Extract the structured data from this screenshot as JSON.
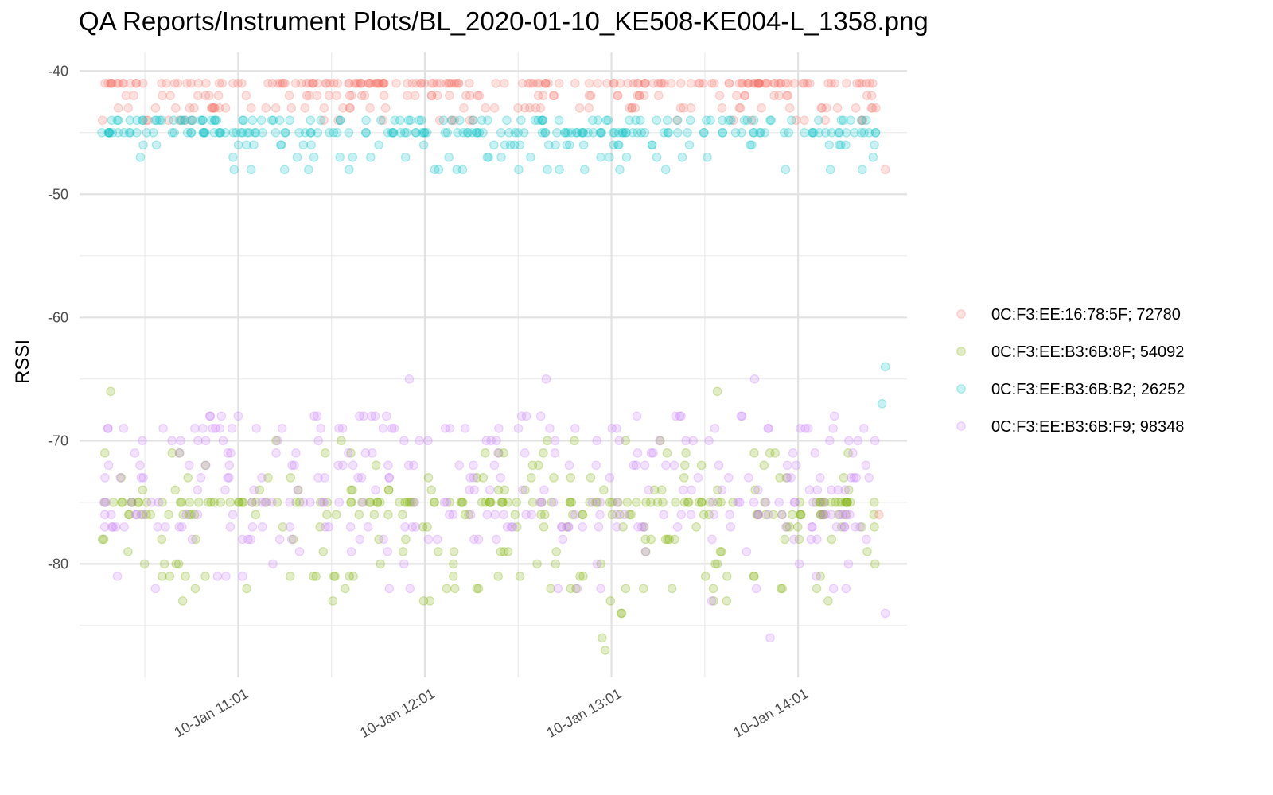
{
  "chart_data": {
    "type": "scatter",
    "title": "QA Reports/Instrument Plots/BL_2020-01-10_KE508-KE004-L_1358.png",
    "xlabel": "",
    "ylabel": "RSSI",
    "x_axis": {
      "kind": "datetime",
      "domain": [
        "2020-01-10 10:10",
        "2020-01-10 14:36"
      ],
      "major_ticks": [
        "2020-01-10 11:01",
        "2020-01-10 12:01",
        "2020-01-10 13:01",
        "2020-01-10 14:01"
      ],
      "major_tick_labels": [
        "10-Jan 11:01",
        "10-Jan 12:01",
        "10-Jan 13:01",
        "10-Jan 14:01"
      ],
      "minor_ticks": [
        "2020-01-10 10:31",
        "2020-01-10 11:31",
        "2020-01-10 12:31",
        "2020-01-10 13:31"
      ]
    },
    "ylim": [
      -89.2,
      -38.5
    ],
    "y_major_ticks": [
      -40,
      -50,
      -60,
      -70,
      -80
    ],
    "y_minor_ticks": [
      -45,
      -55,
      -65,
      -75,
      -85
    ],
    "grid": true,
    "legend_position": "right",
    "marker_opacity": 0.22,
    "time_range": [
      "2020-01-10 10:17",
      "2020-01-10 14:26"
    ],
    "series": [
      {
        "name": "0C:F3:EE:16:78:5F; 72780",
        "color": "#F8766D",
        "rssi_levels": [
          -41,
          -42,
          -43,
          -44
        ],
        "level_weights": [
          0.55,
          0.17,
          0.2,
          0.08
        ],
        "outliers": [
          {
            "x": "2020-01-10 14:29",
            "y": -48
          },
          {
            "x": "2020-01-10 14:27",
            "y": -76
          }
        ]
      },
      {
        "name": "0C:F3:EE:B3:6B:8F; 54092",
        "color": "#7CAE00",
        "rssi_range": [
          -87,
          -66
        ],
        "cluster_levels": [
          -75,
          -76
        ],
        "outliers": [
          {
            "x": "2020-01-10 10:20",
            "y": -66
          },
          {
            "x": "2020-01-10 12:59",
            "y": -87
          },
          {
            "x": "2020-01-10 12:58",
            "y": -86
          },
          {
            "x": "2020-01-10 13:35",
            "y": -66
          }
        ]
      },
      {
        "name": "0C:F3:EE:B3:6B:B2; 26252",
        "color": "#00BFC4",
        "rssi_levels": [
          -44,
          -45,
          -46,
          -47,
          -48
        ],
        "level_weights": [
          0.28,
          0.5,
          0.12,
          0.05,
          0.05
        ],
        "outliers": [
          {
            "x": "2020-01-10 14:29",
            "y": -64
          },
          {
            "x": "2020-01-10 14:28",
            "y": -67
          }
        ]
      },
      {
        "name": "0C:F3:EE:B3:6B:F9; 98348",
        "color": "#C77CFF",
        "rssi_range": [
          -86,
          -65
        ],
        "outliers": [
          {
            "x": "2020-01-10 11:56",
            "y": -65
          },
          {
            "x": "2020-01-10 12:40",
            "y": -65
          },
          {
            "x": "2020-01-10 13:47",
            "y": -65
          },
          {
            "x": "2020-01-10 13:52",
            "y": -86
          },
          {
            "x": "2020-01-10 14:29",
            "y": -84
          },
          {
            "x": "2020-01-10 11:01",
            "y": -68
          },
          {
            "x": "2020-01-10 11:40",
            "y": -68
          }
        ]
      }
    ]
  }
}
